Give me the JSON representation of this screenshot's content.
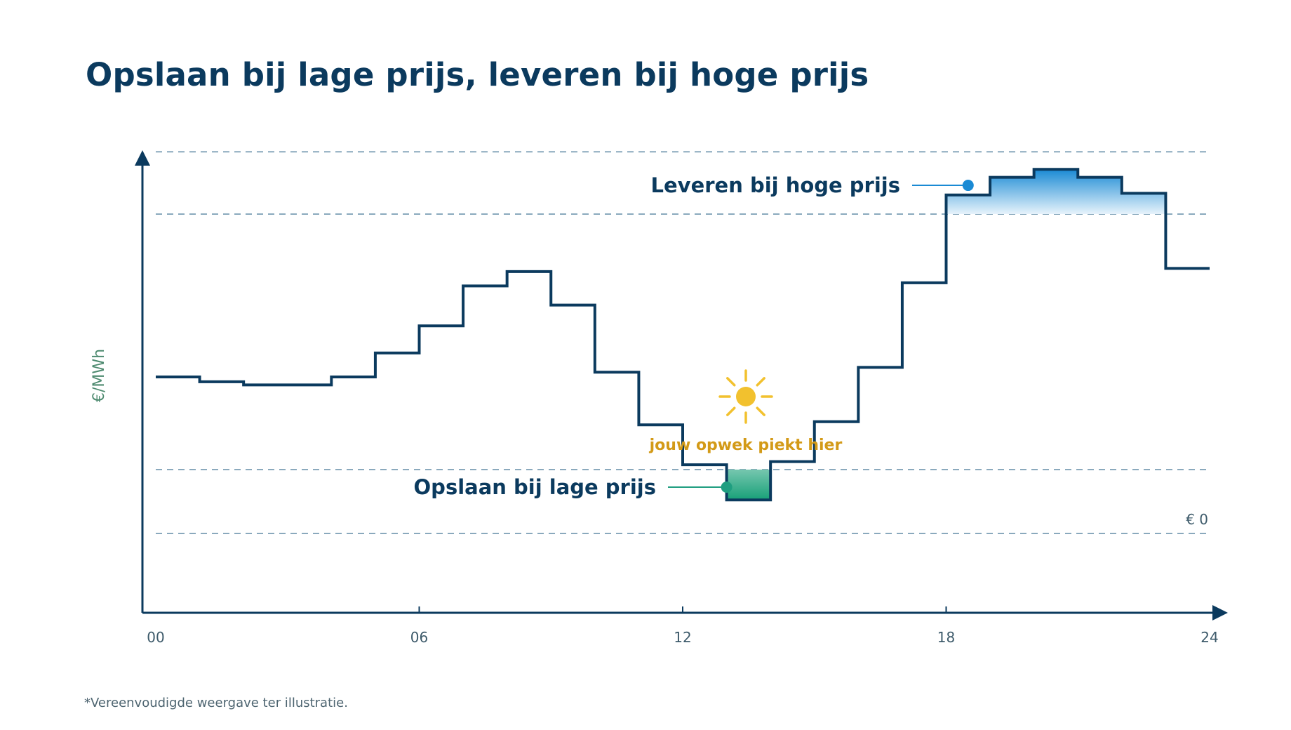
{
  "title": "Opslaan bij lage prijs, leveren bij hoge prijs",
  "footnote": "*Vereenvoudigde weergave ter illustratie.",
  "chart_data": {
    "type": "line",
    "step": true,
    "title": "Opslaan bij lage prijs, leveren bij hoge prijs",
    "ylabel": "€/MWh",
    "xlabel": "",
    "x_ticks": [
      "00",
      "06",
      "12",
      "18",
      "24"
    ],
    "xlim": [
      0,
      24
    ],
    "ylim": [
      -1.75,
      11.25
    ],
    "y_values": [
      4.9,
      4.75,
      4.65,
      4.65,
      4.9,
      5.65,
      6.5,
      7.75,
      8.2,
      7.15,
      5.05,
      3.4,
      2.15,
      1.05,
      2.25,
      3.5,
      5.2,
      7.85,
      10.6,
      11.15,
      11.4,
      11.15,
      10.65,
      8.3
    ],
    "y_value_units": "relative to the printed € 0 line",
    "zero_label": "€ 0",
    "grid": "horizontal dashed reference lines",
    "reference_lines": [
      0,
      2,
      10,
      11.95
    ],
    "annotations": {
      "low": {
        "label": "Opslaan bij lage prijs",
        "x": 13.0,
        "y": 1.45,
        "color": "#1f9e80",
        "band": [
          2,
          0
        ],
        "hours": [
          11,
          15
        ]
      },
      "high": {
        "label": "Leveren bij hoge prijs",
        "x": 18.5,
        "y": 10.9,
        "color": "#1a8ad4",
        "band": [
          10,
          11.95
        ],
        "hours": [
          18,
          23
        ]
      },
      "solar": {
        "label": "jouw opwek piekt hier",
        "icon": "sun-icon",
        "color": "#f2c12e",
        "text_color": "#d39a17"
      }
    },
    "colors": {
      "line": "#0b3a5e",
      "axis": "#0b3a5e",
      "grid": "#8aa9bd",
      "tick_text": "#3d5a6a",
      "ylabel": "#4d8a6f"
    }
  }
}
